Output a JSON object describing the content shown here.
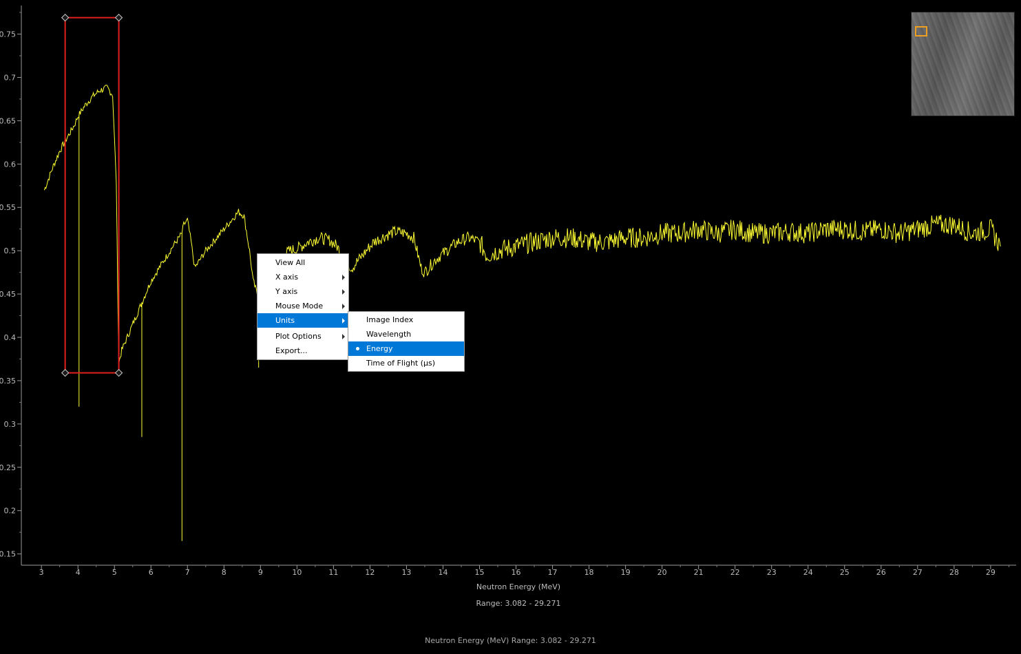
{
  "chart_data": {
    "type": "line",
    "xlabel": "Neutron Energy (MeV)",
    "range_label": "Range: 3.082 - 29.271",
    "xlim": [
      2.45,
      29.7
    ],
    "ylim": [
      0.137,
      0.783
    ],
    "x_ticks": [
      3,
      4,
      5,
      6,
      7,
      8,
      9,
      10,
      11,
      12,
      13,
      14,
      15,
      16,
      17,
      18,
      19,
      20,
      21,
      22,
      23,
      24,
      25,
      26,
      27,
      28,
      29
    ],
    "y_ticks": [
      0.15,
      0.2,
      0.25,
      0.3,
      0.35,
      0.4,
      0.45,
      0.5,
      0.55,
      0.6,
      0.65,
      0.7,
      0.75
    ],
    "y_tick_labels": [
      "0.15",
      "0.2",
      "0.25",
      "0.3",
      "0.35",
      "0.4",
      "0.45",
      "0.5",
      "0.55",
      "0.6",
      "0.65",
      "0.7",
      "0.75"
    ],
    "series": [
      {
        "color": "#ffff33",
        "x": [
          3.08,
          3.3,
          3.5,
          3.7,
          3.9,
          4.0,
          4.2,
          4.4,
          4.6,
          4.8,
          4.95,
          5.05,
          5.12,
          5.2,
          5.4,
          5.6,
          5.75,
          6.0,
          6.3,
          6.6,
          6.85,
          6.9,
          7.0,
          7.1,
          7.2,
          7.5,
          7.8,
          8.1,
          8.4,
          8.55,
          8.7,
          8.8,
          8.95,
          9.2,
          9.5,
          9.8,
          10.0,
          10.3,
          10.6,
          10.9,
          11.1,
          11.3,
          11.5,
          11.8,
          12.1,
          12.4,
          12.7,
          13.0,
          13.2,
          13.4,
          13.5,
          13.8,
          14.1,
          14.4,
          14.7,
          15.0,
          15.2,
          15.5,
          16.0,
          16.5,
          17.0,
          17.5,
          18.0,
          18.5,
          19.0,
          19.5,
          20.0,
          20.5,
          21.0,
          21.5,
          22.0,
          22.5,
          23.0,
          23.5,
          24.0,
          24.5,
          25.0,
          25.5,
          26.0,
          26.5,
          27.0,
          27.5,
          28.0,
          28.5,
          29.0,
          29.27
        ],
        "y": [
          0.57,
          0.595,
          0.615,
          0.63,
          0.645,
          0.655,
          0.668,
          0.678,
          0.685,
          0.688,
          0.68,
          0.58,
          0.37,
          0.385,
          0.405,
          0.425,
          0.44,
          0.465,
          0.485,
          0.505,
          0.52,
          0.53,
          0.535,
          0.51,
          0.48,
          0.5,
          0.515,
          0.53,
          0.545,
          0.54,
          0.5,
          0.465,
          0.445,
          0.475,
          0.49,
          0.5,
          0.502,
          0.51,
          0.515,
          0.512,
          0.505,
          0.49,
          0.48,
          0.495,
          0.51,
          0.517,
          0.522,
          0.52,
          0.515,
          0.48,
          0.475,
          0.49,
          0.5,
          0.51,
          0.515,
          0.51,
          0.495,
          0.5,
          0.505,
          0.51,
          0.515,
          0.515,
          0.51,
          0.51,
          0.515,
          0.515,
          0.52,
          0.52,
          0.525,
          0.52,
          0.525,
          0.52,
          0.52,
          0.522,
          0.52,
          0.525,
          0.525,
          0.522,
          0.525,
          0.52,
          0.525,
          0.53,
          0.53,
          0.52,
          0.525,
          0.505
        ]
      }
    ],
    "dips": [
      {
        "x": 4.03,
        "y": 0.32
      },
      {
        "x": 5.75,
        "y": 0.285
      },
      {
        "x": 6.85,
        "y": 0.165
      },
      {
        "x": 8.95,
        "y": 0.365
      }
    ],
    "roi": {
      "x1": 3.65,
      "x2": 5.12,
      "y1": 0.359,
      "y2": 0.769,
      "color": "#e02020"
    }
  },
  "context_menu": {
    "items": [
      {
        "label": "View All",
        "submenu": false
      },
      {
        "label": "X axis",
        "submenu": true
      },
      {
        "label": "Y axis",
        "submenu": true
      },
      {
        "label": "Mouse Mode",
        "submenu": true
      },
      {
        "label": "Units",
        "submenu": true,
        "selected": true
      },
      {
        "label": "Plot Options",
        "submenu": true
      },
      {
        "label": "Export...",
        "submenu": false
      }
    ],
    "units_submenu": [
      {
        "label": "Image Index"
      },
      {
        "label": "Wavelength"
      },
      {
        "label": "Energy",
        "checked": true
      },
      {
        "label": "Time of Flight (µs)"
      }
    ]
  },
  "status_bar": {
    "text": "Neutron Energy (MeV) Range: 3.082 - 29.271"
  },
  "thumbnail": {
    "roi_color": "#f0a020"
  }
}
